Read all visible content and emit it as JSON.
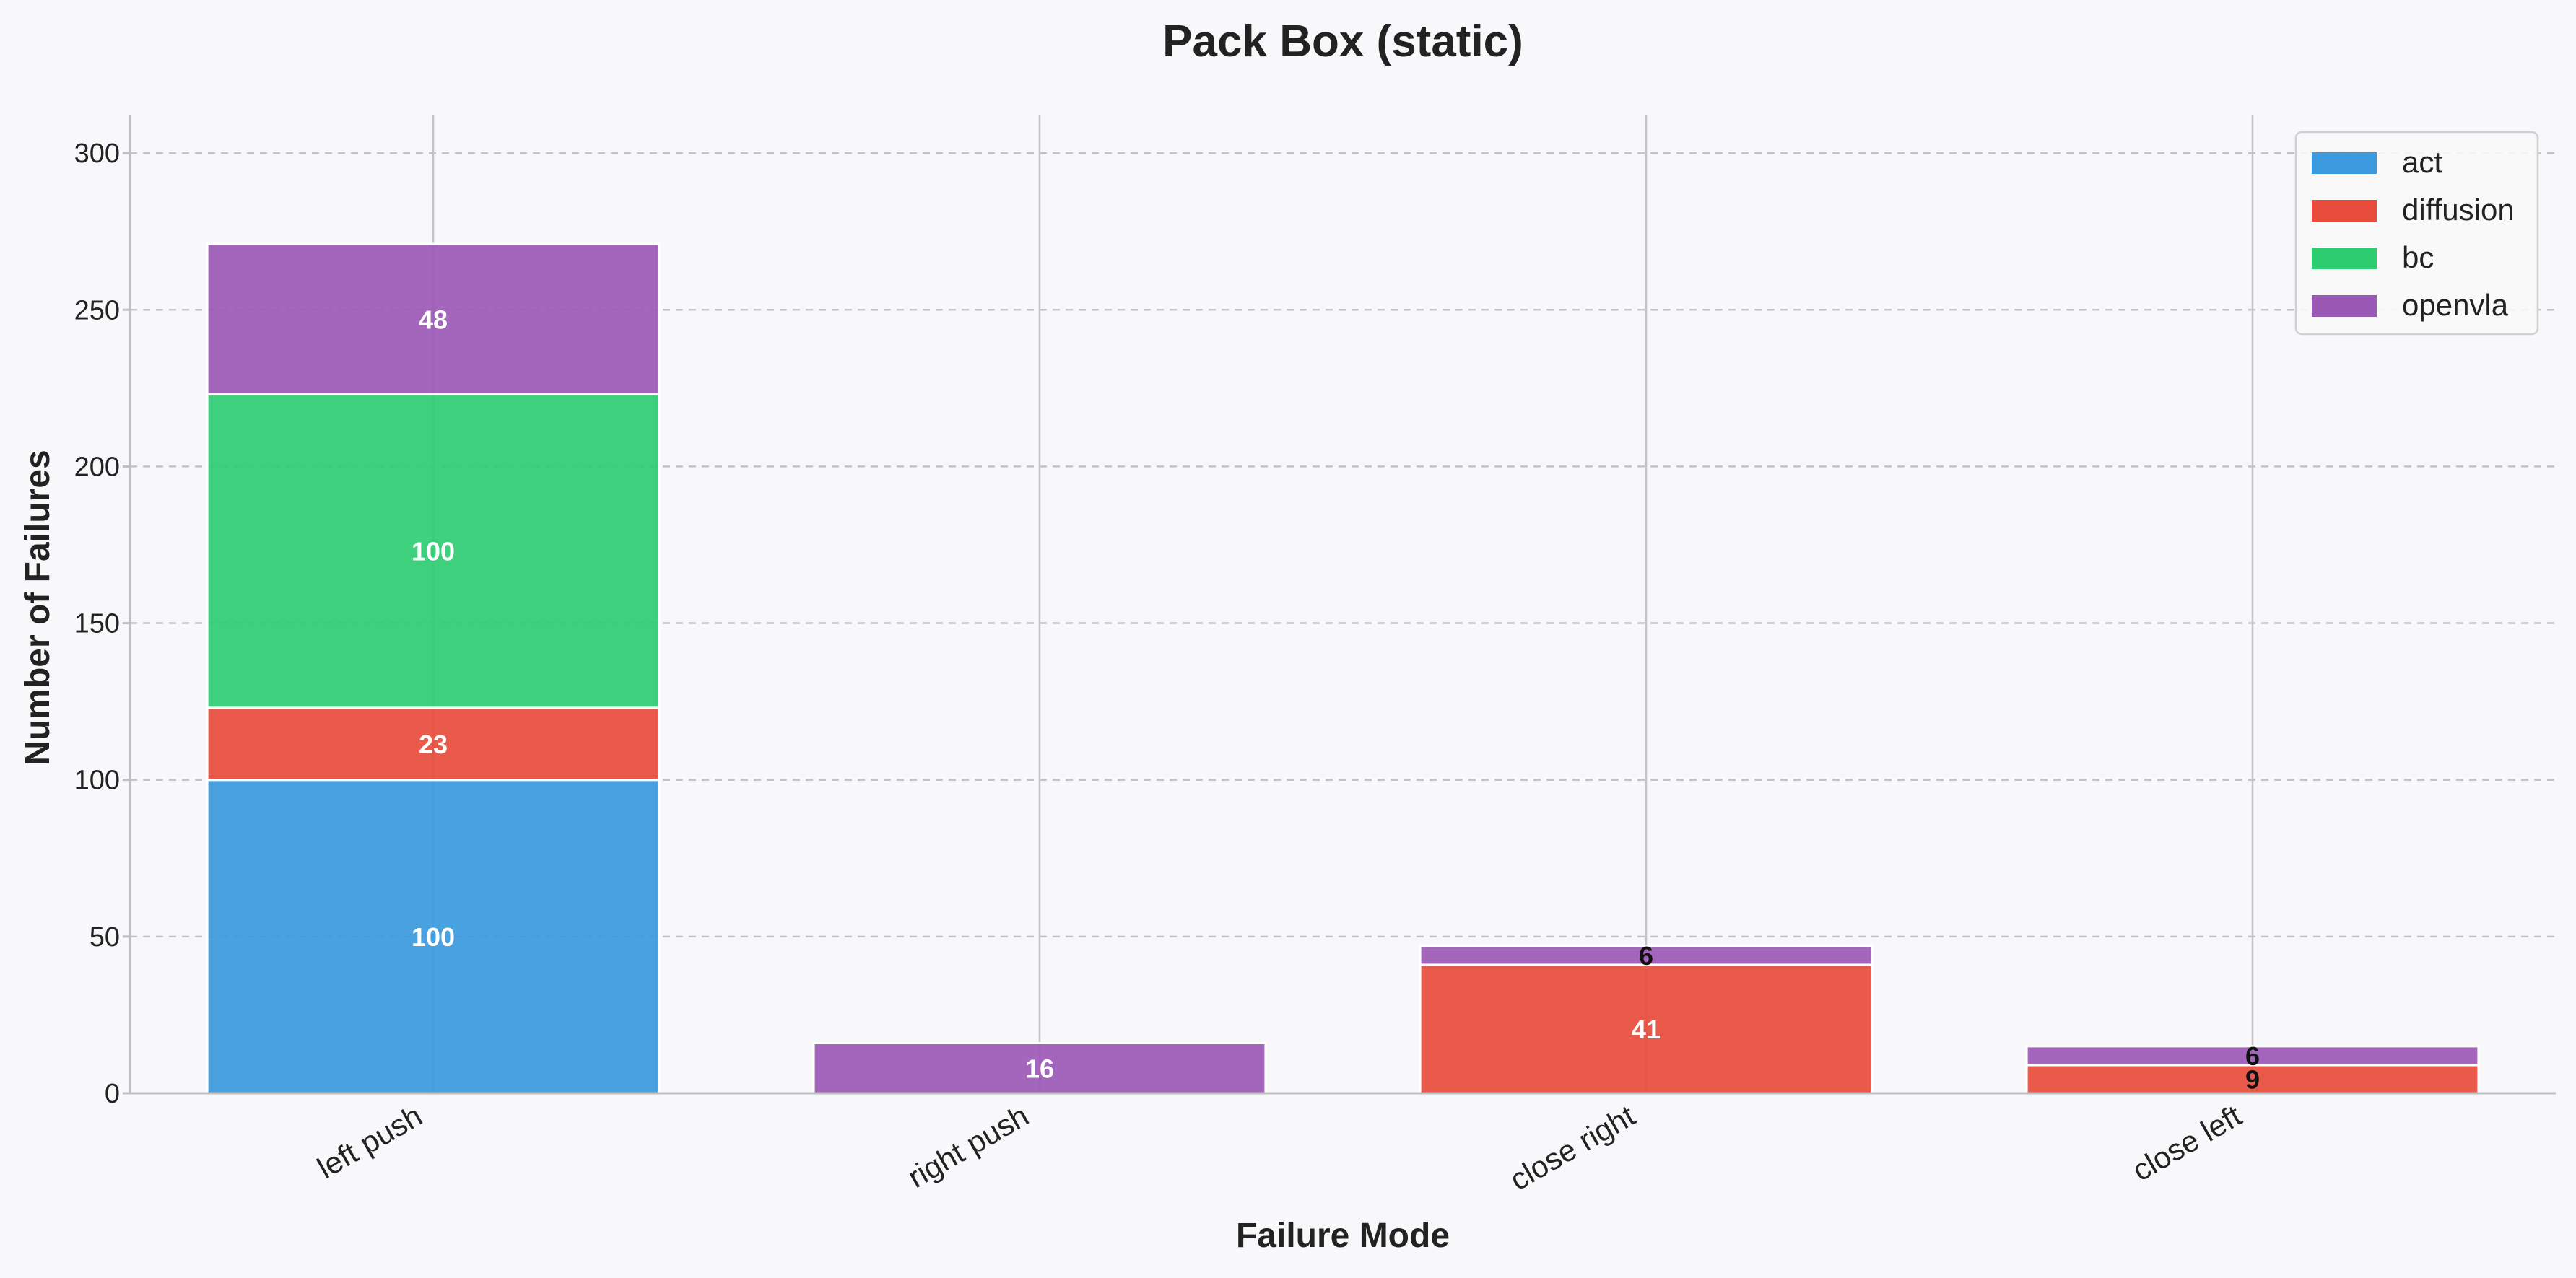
{
  "chart_data": {
    "type": "bar",
    "stacked": true,
    "title": "Pack Box (static)",
    "xlabel": "Failure Mode",
    "ylabel": "Number of Failures",
    "categories": [
      "left push",
      "right push",
      "close right",
      "close left"
    ],
    "ylim": [
      0,
      312
    ],
    "yticks": [
      0,
      50,
      100,
      150,
      200,
      250,
      300
    ],
    "grid": {
      "y": true,
      "y_style": "dashed",
      "x_category_lines": true
    },
    "legend_position": "top-right",
    "series": [
      {
        "name": "act",
        "color": "#3b99dd",
        "values": [
          100,
          0,
          0,
          0
        ]
      },
      {
        "name": "diffusion",
        "color": "#e74c3c",
        "values": [
          23,
          0,
          41,
          9
        ]
      },
      {
        "name": "bc",
        "color": "#2ecc71",
        "values": [
          100,
          0,
          0,
          0
        ]
      },
      {
        "name": "openvla",
        "color": "#9b59b6",
        "values": [
          48,
          16,
          6,
          6
        ]
      }
    ]
  }
}
